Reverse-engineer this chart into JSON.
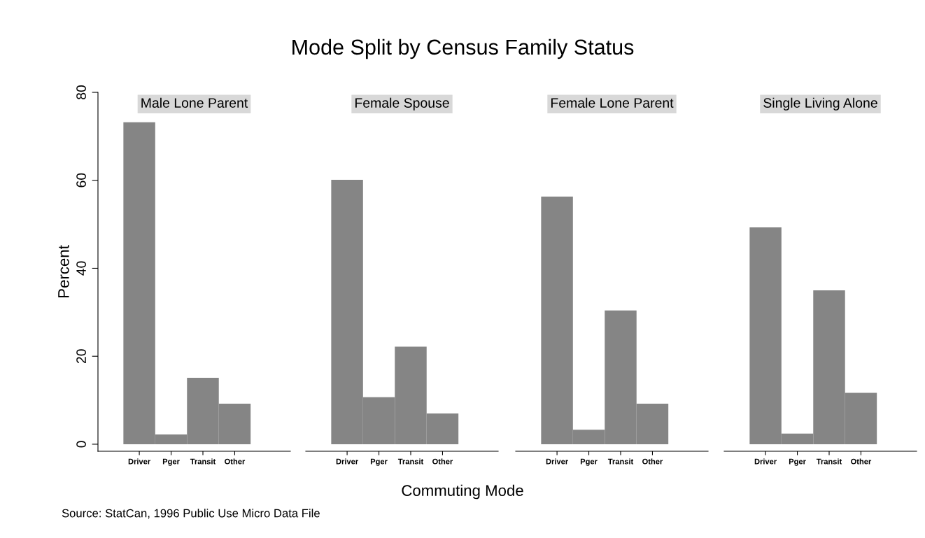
{
  "chart_data": [
    {
      "type": "bar",
      "subtitle": "Male Lone Parent",
      "ylabel": "Percent",
      "annotations": [
        "Source: StatCan, 1996 Public Use Micro Data File"
      ],
      "categories": [
        "Driver",
        "Pger",
        "Transit",
        "Other"
      ],
      "values": [
        73.2,
        2.2,
        15.1,
        9.2
      ],
      "color": "#858585",
      "ylim": [
        -1.6,
        80
      ],
      "yticks": [
        0,
        20,
        40,
        60,
        80
      ],
      "grid": false
    },
    {
      "type": "bar",
      "title": "Mode Split by Census Family Status",
      "subtitle": "Female Spouse",
      "xlabel": "Commuting Mode",
      "categories": [
        "Driver",
        "Pger",
        "Transit",
        "Other"
      ],
      "values": [
        60.1,
        10.7,
        22.2,
        7.0
      ],
      "color": "#858585",
      "ylim": [
        -1.6,
        80
      ],
      "tick_labels": "x",
      "grid": false
    },
    {
      "type": "bar",
      "subtitle": "Female Lone Parent",
      "categories": [
        "Driver",
        "Pger",
        "Transit",
        "Other"
      ],
      "values": [
        56.3,
        3.3,
        30.4,
        9.2
      ],
      "color": "#858585",
      "ylim": [
        -1.6,
        80
      ],
      "tick_labels": "x",
      "grid": false
    },
    {
      "type": "bar",
      "subtitle": "Single Living Alone",
      "categories": [
        "Driver",
        "Pger",
        "Transit",
        "Other"
      ],
      "values": [
        49.3,
        2.4,
        35.0,
        11.7
      ],
      "color": "#858585",
      "ylim": [
        -1.6,
        80
      ],
      "tick_labels": "x",
      "grid": false
    }
  ]
}
